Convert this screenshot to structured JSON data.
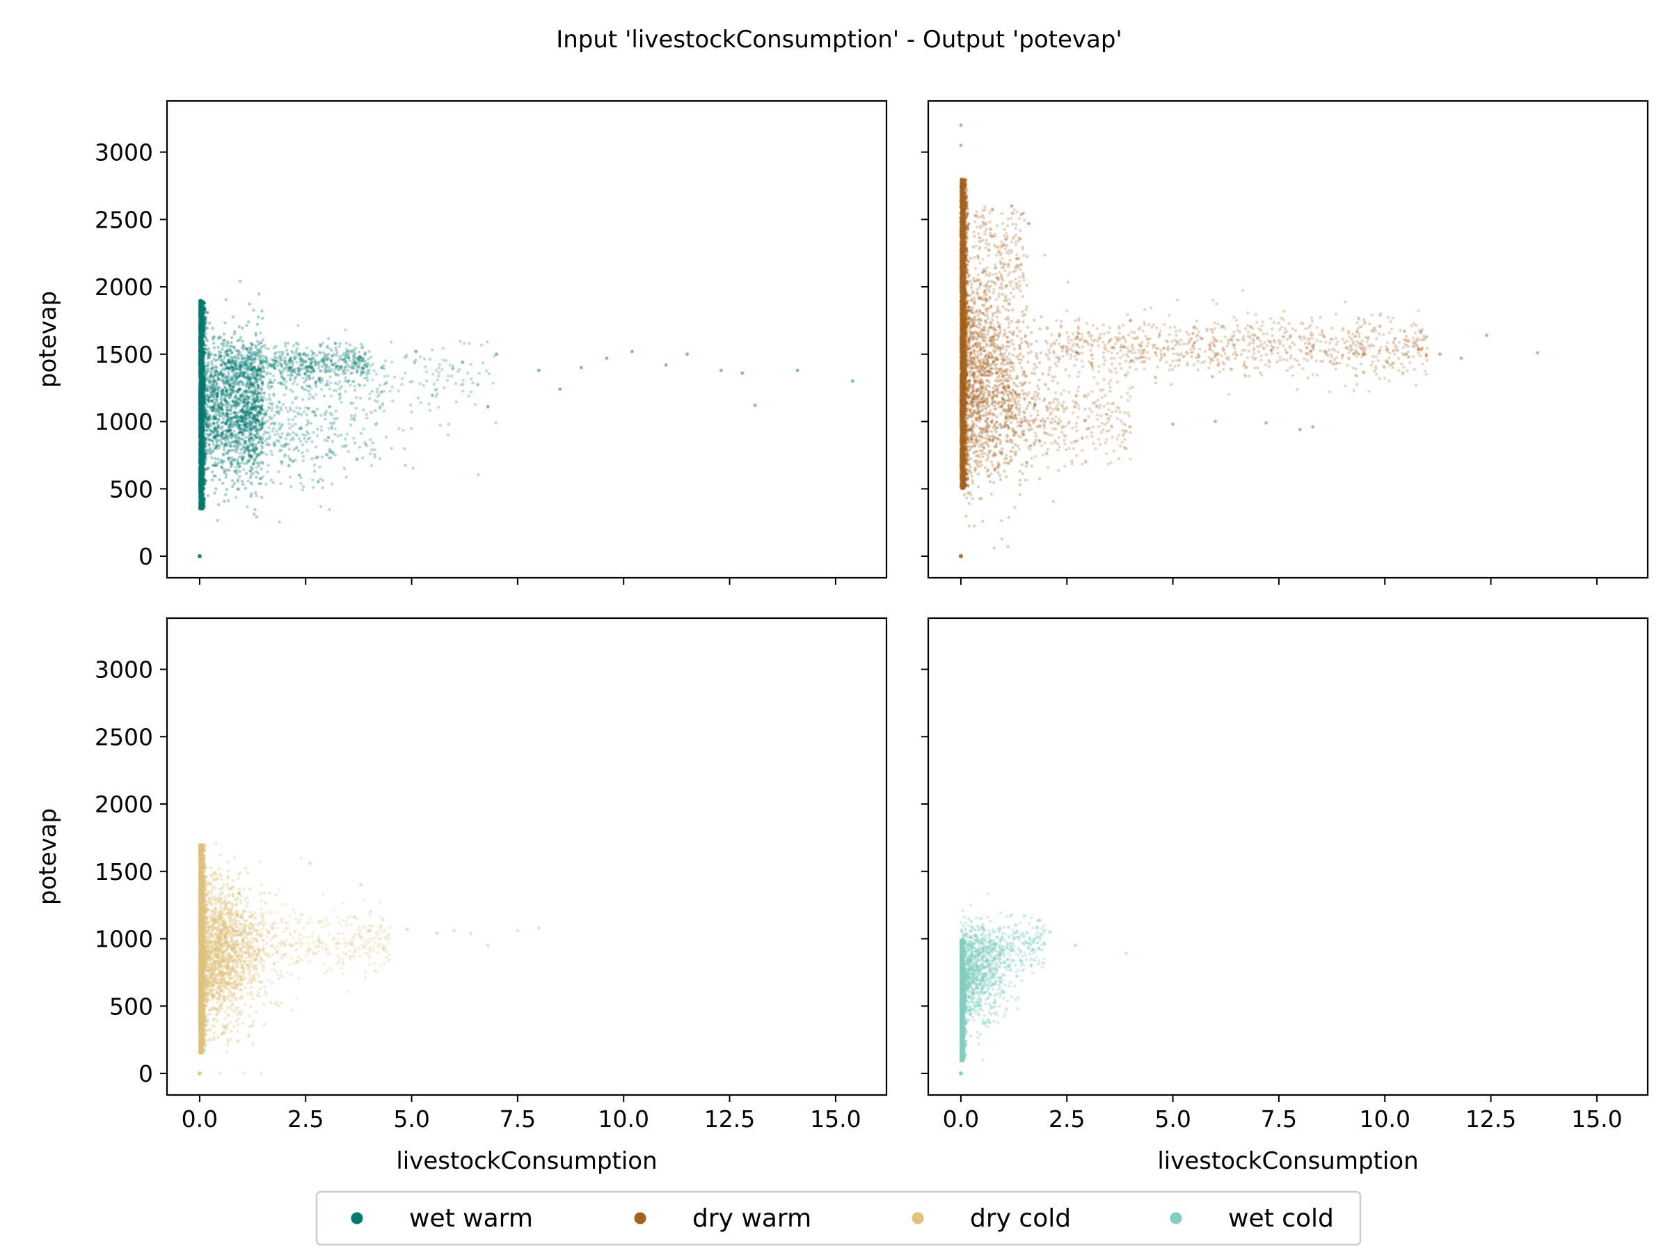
{
  "figure": {
    "title": "Input 'livestockConsumption' - Output 'potevap'"
  },
  "chart_data": [
    {
      "type": "scatter",
      "panel": "top-left",
      "series_name": "wet warm",
      "color": "#01796f",
      "xlabel": "",
      "ylabel": "potevap",
      "xlim": [
        -0.77,
        16.2
      ],
      "ylim": [
        -160,
        3380
      ],
      "xticks": [
        0.0,
        2.5,
        5.0,
        7.5,
        10.0,
        12.5,
        15.0
      ],
      "xtick_labels": [],
      "yticks": [
        0,
        500,
        1000,
        1500,
        2000,
        2500,
        3000
      ],
      "ytick_labels": [
        "0",
        "500",
        "1000",
        "1500",
        "2000",
        "2500",
        "3000"
      ],
      "outliers": [
        [
          0.0,
          0
        ],
        [
          4.3,
          1400
        ],
        [
          5.1,
          1520
        ],
        [
          6.2,
          1440
        ],
        [
          7.0,
          1500
        ],
        [
          8.0,
          1380
        ],
        [
          9.0,
          1400
        ],
        [
          9.6,
          1470
        ],
        [
          10.2,
          1520
        ],
        [
          11.0,
          1420
        ],
        [
          11.5,
          1500
        ],
        [
          12.3,
          1380
        ],
        [
          12.8,
          1360
        ],
        [
          13.1,
          1120
        ],
        [
          14.1,
          1380
        ],
        [
          15.4,
          1300
        ],
        [
          6.8,
          1110
        ],
        [
          8.5,
          1240
        ],
        [
          3.2,
          1580
        ]
      ]
    },
    {
      "type": "scatter",
      "panel": "top-right",
      "series_name": "dry warm",
      "color": "#a6611a",
      "xlabel": "",
      "ylabel": "",
      "xlim": [
        -0.77,
        16.2
      ],
      "ylim": [
        -160,
        3380
      ],
      "xticks": [
        0.0,
        2.5,
        5.0,
        7.5,
        10.0,
        12.5,
        15.0
      ],
      "xtick_labels": [],
      "yticks": [
        0,
        500,
        1000,
        1500,
        2000,
        2500,
        3000
      ],
      "ytick_labels": [],
      "outliers": [
        [
          0.0,
          0
        ],
        [
          0.0,
          3200
        ],
        [
          0.0,
          3050
        ],
        [
          1.2,
          2600
        ],
        [
          1.6,
          2470
        ],
        [
          4.0,
          1750
        ],
        [
          5.5,
          1700
        ],
        [
          7.0,
          1620
        ],
        [
          8.3,
          1560
        ],
        [
          9.5,
          1500
        ],
        [
          10.5,
          1500
        ],
        [
          11.3,
          1500
        ],
        [
          11.8,
          1470
        ],
        [
          12.4,
          1640
        ],
        [
          13.6,
          1510
        ],
        [
          5.0,
          980
        ],
        [
          6.0,
          1000
        ],
        [
          7.2,
          990
        ],
        [
          8.0,
          940
        ],
        [
          8.3,
          960
        ],
        [
          10.8,
          1540
        ]
      ]
    },
    {
      "type": "scatter",
      "panel": "bottom-left",
      "series_name": "dry cold",
      "color": "#dfc27d",
      "xlabel": "livestockConsumption",
      "ylabel": "potevap",
      "xlim": [
        -0.77,
        16.2
      ],
      "ylim": [
        -160,
        3380
      ],
      "xticks": [
        0.0,
        2.5,
        5.0,
        7.5,
        10.0,
        12.5,
        15.0
      ],
      "xtick_labels": [
        "0.0",
        "2.5",
        "5.0",
        "7.5",
        "10.0",
        "12.5",
        "15.0"
      ],
      "yticks": [
        0,
        500,
        1000,
        1500,
        2000,
        2500,
        3000
      ],
      "ytick_labels": [
        "0",
        "500",
        "1000",
        "1500",
        "2000",
        "2500",
        "3000"
      ],
      "outliers": [
        [
          0.0,
          0
        ],
        [
          0.0,
          1700
        ],
        [
          2.6,
          1560
        ],
        [
          3.8,
          1400
        ],
        [
          4.0,
          1060
        ],
        [
          4.9,
          1070
        ],
        [
          5.6,
          1040
        ],
        [
          6.0,
          1060
        ],
        [
          6.4,
          1040
        ],
        [
          6.8,
          950
        ],
        [
          7.5,
          1060
        ],
        [
          8.0,
          1080
        ],
        [
          2.7,
          890
        ],
        [
          2.3,
          830
        ]
      ]
    },
    {
      "type": "scatter",
      "panel": "bottom-right",
      "series_name": "wet cold",
      "color": "#80cdc1",
      "xlabel": "livestockConsumption",
      "ylabel": "",
      "xlim": [
        -0.77,
        16.2
      ],
      "ylim": [
        -160,
        3380
      ],
      "xticks": [
        0.0,
        2.5,
        5.0,
        7.5,
        10.0,
        12.5,
        15.0
      ],
      "xtick_labels": [
        "0.0",
        "2.5",
        "5.0",
        "7.5",
        "10.0",
        "12.5",
        "15.0"
      ],
      "yticks": [
        0,
        500,
        1000,
        1500,
        2000,
        2500,
        3000
      ],
      "ytick_labels": [],
      "outliers": [
        [
          0.0,
          0
        ],
        [
          2.7,
          950
        ],
        [
          3.9,
          890
        ],
        [
          2.1,
          1050
        ],
        [
          1.8,
          1080
        ],
        [
          1.5,
          1170
        ]
      ]
    }
  ],
  "legend": {
    "placement": "bottom-center",
    "entries": [
      {
        "label": "wet warm",
        "color": "#01796f"
      },
      {
        "label": "dry warm",
        "color": "#a6611a"
      },
      {
        "label": "dry cold",
        "color": "#dfc27d"
      },
      {
        "label": "wet cold",
        "color": "#80cdc1"
      }
    ]
  }
}
